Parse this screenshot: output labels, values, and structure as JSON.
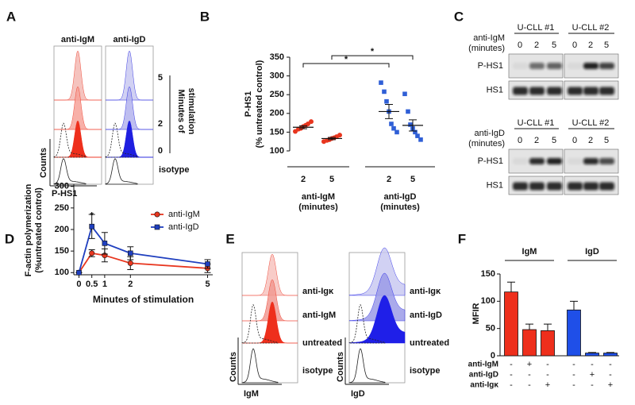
{
  "panel_labels": [
    "A",
    "B",
    "C",
    "D",
    "E",
    "F"
  ],
  "panel_a": {
    "columns": [
      "anti-IgM",
      "anti-IgD"
    ],
    "times": [
      "5",
      "2",
      "0"
    ],
    "time_label": [
      "Minutes of",
      "stimulation"
    ],
    "isotype": "isotype",
    "y_label": "Counts",
    "x_label": "P-HS1"
  },
  "panel_c": {
    "blocks": [
      {
        "donors": [
          "U-CLL #1",
          "U-CLL #2"
        ],
        "stimulus": [
          "anti-IgM",
          "(minutes)"
        ],
        "lanes": [
          "0",
          "2",
          "5",
          "0",
          "2",
          "5"
        ],
        "rows": [
          "P-HS1",
          "HS1"
        ]
      },
      {
        "donors": [
          "U-CLL #1",
          "U-CLL #2"
        ],
        "stimulus": [
          "anti-IgD",
          "(minutes)"
        ],
        "lanes": [
          "0",
          "2",
          "5",
          "0",
          "2",
          "5"
        ],
        "rows": [
          "P-HS1",
          "HS1"
        ]
      }
    ]
  },
  "panel_e": {
    "histograms": [
      {
        "labels": [
          "anti-Igκ",
          "anti-IgM",
          "untreated",
          "isotype"
        ],
        "y_label": "Counts",
        "x_label": "IgM"
      },
      {
        "labels": [
          "anti-Igκ",
          "anti-IgD",
          "untreated",
          "isotype"
        ],
        "y_label": "Counts",
        "x_label": "IgD"
      }
    ]
  },
  "chart_data": [
    {
      "type": "dot",
      "y_label": [
        "P-HS1",
        "(% untreated control)"
      ],
      "groups": [
        {
          "label": [
            "anti-IgM",
            "(minutes)"
          ],
          "color": "#e8361f",
          "categories": [
            "2",
            "5"
          ],
          "points": [
            [
              152,
              158,
              160,
              165,
              168,
              172,
              178
            ],
            [
              125,
              128,
              130,
              133,
              135,
              138,
              142
            ]
          ],
          "means": [
            163,
            133
          ],
          "sem": [
            4,
            3
          ]
        },
        {
          "label": [
            "anti-IgD",
            "(minutes)"
          ],
          "color": "#2f5fd6",
          "categories": [
            "2",
            "5"
          ],
          "points": [
            [
              282,
              258,
              232,
              205,
              172,
              160,
              150
            ],
            [
              252,
              205,
              170,
              160,
              150,
              140,
              130
            ]
          ],
          "means": [
            205,
            168
          ],
          "sem": [
            19,
            15
          ]
        }
      ],
      "significance": [
        {
          "y": 333,
          "label": "*"
        },
        {
          "y": 354,
          "label": "*"
        }
      ],
      "ylim": [
        100,
        350
      ],
      "yticks": [
        100,
        150,
        200,
        250,
        300,
        350
      ]
    },
    {
      "type": "line",
      "y_label": [
        "F-actin polymerization",
        "(%untreated control)"
      ],
      "x_label": "Minutes of stimulation",
      "x": [
        0,
        0.5,
        1,
        2,
        5
      ],
      "series": [
        {
          "name": "anti-IgM",
          "color": "#e8361f",
          "marker": "circle",
          "values": [
            100,
            145,
            140,
            122,
            110
          ],
          "errors": [
            0,
            8,
            15,
            15,
            10
          ]
        },
        {
          "name": "anti-IgD",
          "color": "#1f3fbf",
          "marker": "square",
          "values": [
            100,
            207,
            168,
            145,
            120
          ],
          "errors": [
            0,
            28,
            25,
            15,
            10
          ]
        }
      ],
      "annotations": [
        {
          "x": 0.5,
          "y": 232,
          "label": "*"
        }
      ],
      "xlim": [
        -0.2,
        5.2
      ],
      "xticks": [
        0,
        0.5,
        1,
        2,
        5
      ],
      "ylim": [
        95,
        305
      ],
      "yticks": [
        100,
        150,
        200,
        250,
        300
      ],
      "legend": "upper right"
    },
    {
      "type": "bar",
      "y_label": "MFIR",
      "values": [
        117,
        48,
        46,
        84,
        5,
        5
      ],
      "errors": [
        18,
        10,
        12,
        16,
        1,
        1
      ],
      "colors": [
        "#ee2f1c",
        "#ee2f1c",
        "#ee2f1c",
        "#1f4fe8",
        "#1f4fe8",
        "#1f4fe8"
      ],
      "groups": [
        "IgM",
        "IgD"
      ],
      "treatment_rows": [
        {
          "label": "anti-IgM",
          "marks": [
            "-",
            "+",
            "-",
            "-",
            "-",
            "-"
          ]
        },
        {
          "label": "anti-IgD",
          "marks": [
            "-",
            "-",
            "-",
            "-",
            "+",
            "-"
          ]
        },
        {
          "label": "anti-Igκ",
          "marks": [
            "-",
            "-",
            "+",
            "-",
            "-",
            "+"
          ]
        }
      ],
      "ylim": [
        0,
        150
      ],
      "yticks": [
        0,
        50,
        100,
        150
      ]
    }
  ]
}
